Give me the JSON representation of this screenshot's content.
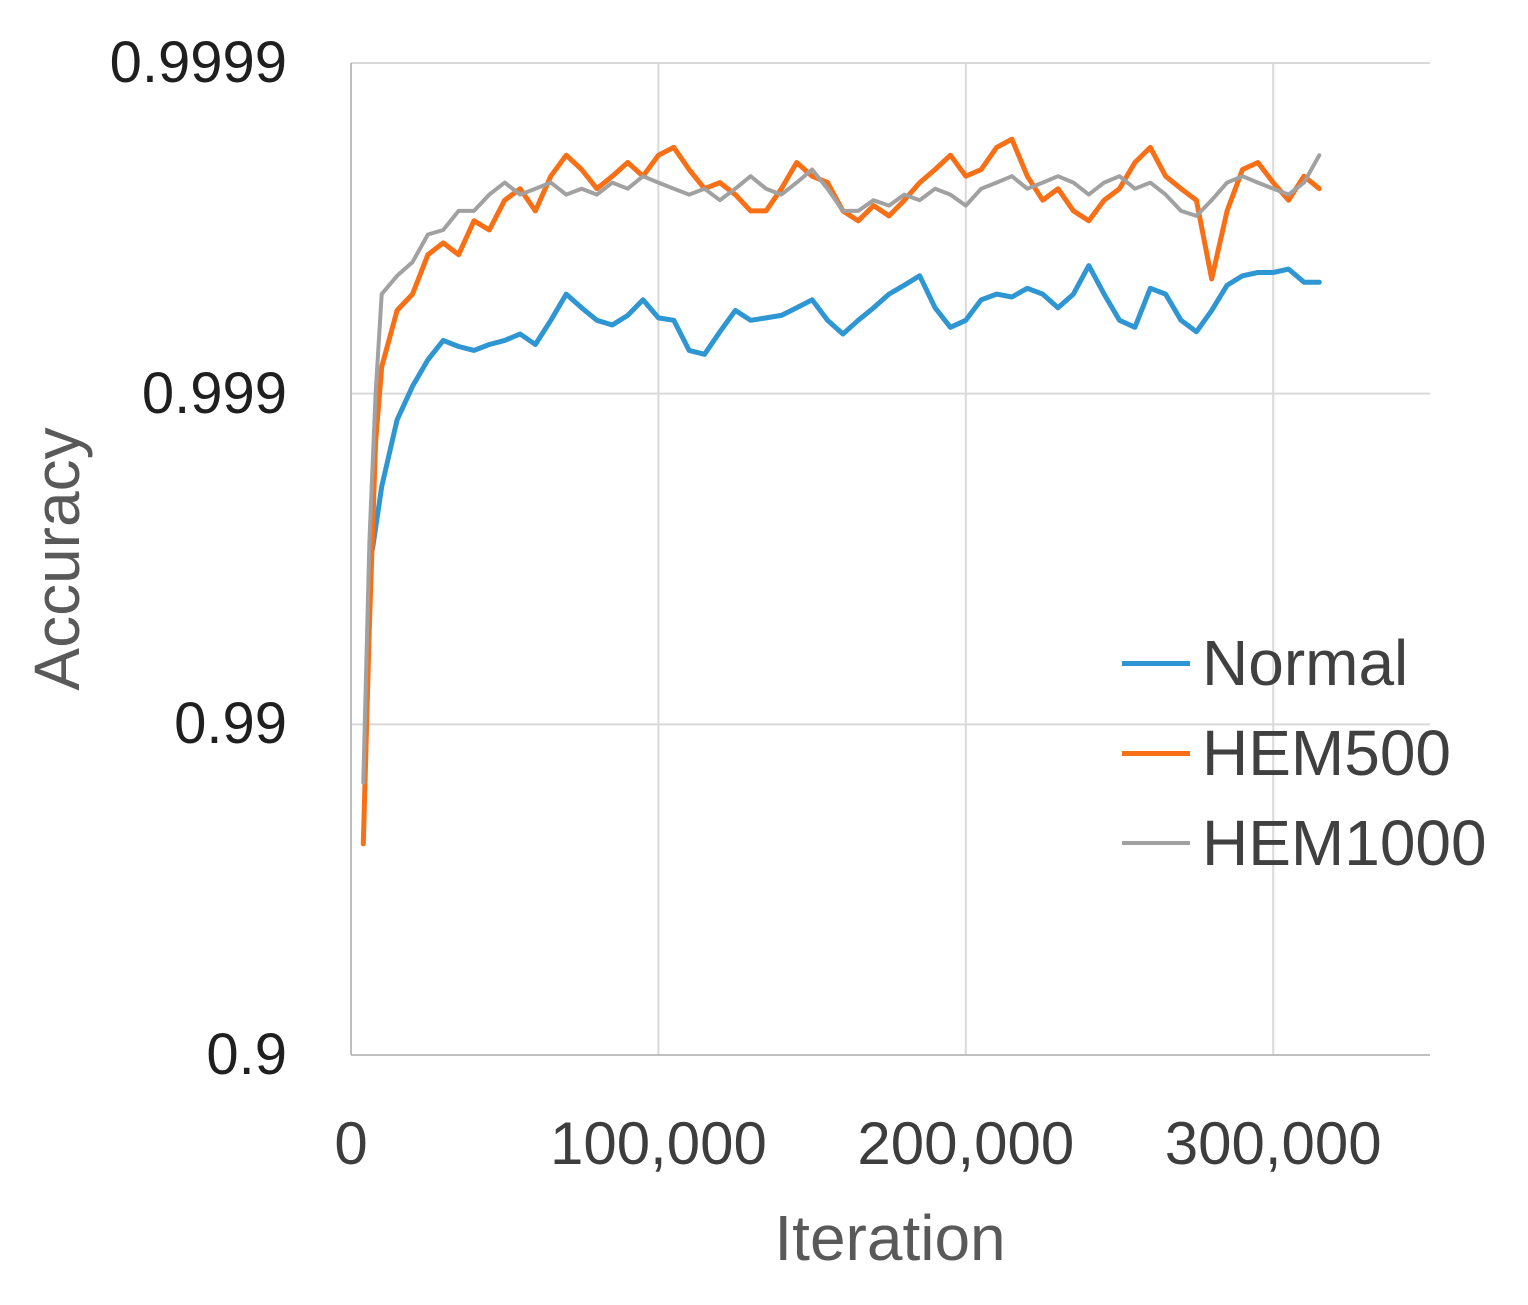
{
  "chart_data": {
    "type": "line",
    "title": "",
    "x_axis": {
      "label": "Iteration",
      "min": 0,
      "max": 351000,
      "ticks": [
        0,
        100000,
        200000,
        300000
      ],
      "tick_labels": [
        "0",
        "100,000",
        "200,000",
        "300,000"
      ]
    },
    "y_axis": {
      "label": "Accuracy",
      "min": 0.9,
      "max": 0.9999,
      "scale": "log10(1-accuracy), one gridline per decade",
      "ticks": [
        0.9,
        0.99,
        0.999,
        0.9999
      ],
      "tick_labels": [
        "0.9",
        "0.99",
        "0.999",
        "0.9999"
      ]
    },
    "grid": true,
    "legend_position": "middle-right-inside",
    "series": [
      {
        "name": "Normal",
        "color": "#2E96D3",
        "stroke_width": 5,
        "x": [
          7000,
          10000,
          15000,
          20000,
          25000,
          30000,
          35000,
          40000,
          45000,
          50000,
          55000,
          60000,
          65000,
          70000,
          75000,
          80000,
          85000,
          90000,
          95000,
          100000,
          105000,
          110000,
          115000,
          120000,
          125000,
          130000,
          135000,
          140000,
          145000,
          150000,
          155000,
          160000,
          165000,
          170000,
          175000,
          180000,
          185000,
          190000,
          195000,
          200000,
          205000,
          210000,
          215000,
          220000,
          225000,
          230000,
          235000,
          240000,
          245000,
          250000,
          255000,
          260000,
          265000,
          270000,
          275000,
          280000,
          285000,
          290000,
          295000,
          300000,
          305000,
          310000,
          315000
        ],
        "y": [
          0.99705,
          0.99809,
          0.9988,
          0.99905,
          0.99921,
          0.99931,
          0.99928,
          0.99926,
          0.99929,
          0.99931,
          0.99934,
          0.99929,
          0.9994,
          0.9995,
          0.99945,
          0.9994,
          0.99938,
          0.99942,
          0.99948,
          0.99941,
          0.9994,
          0.99926,
          0.99924,
          0.99935,
          0.99944,
          0.9994,
          0.99941,
          0.99942,
          0.99945,
          0.99948,
          0.9994,
          0.99934,
          0.9994,
          0.99945,
          0.9995,
          0.99953,
          0.99956,
          0.99945,
          0.99937,
          0.9994,
          0.99948,
          0.9995,
          0.99949,
          0.99952,
          0.9995,
          0.99945,
          0.9995,
          0.99959,
          0.9995,
          0.9994,
          0.99937,
          0.99952,
          0.9995,
          0.9994,
          0.99935,
          0.99944,
          0.99953,
          0.99956,
          0.99957,
          0.99957,
          0.99958,
          0.99954,
          0.99954
        ]
      },
      {
        "name": "HEM500",
        "color": "#F86F15",
        "stroke_width": 5,
        "x": [
          4000,
          6000,
          8000,
          10000,
          15000,
          20000,
          25000,
          30000,
          35000,
          40000,
          45000,
          50000,
          55000,
          60000,
          65000,
          70000,
          75000,
          80000,
          85000,
          90000,
          95000,
          100000,
          105000,
          110000,
          115000,
          120000,
          125000,
          130000,
          135000,
          140000,
          145000,
          150000,
          155000,
          160000,
          165000,
          170000,
          175000,
          180000,
          185000,
          190000,
          195000,
          200000,
          205000,
          210000,
          215000,
          220000,
          225000,
          230000,
          235000,
          240000,
          245000,
          250000,
          255000,
          260000,
          265000,
          270000,
          275000,
          280000,
          285000,
          290000,
          295000,
          300000,
          305000,
          310000,
          315000
        ],
        "y": [
          0.977,
          0.995,
          0.9986,
          0.99917,
          0.99944,
          0.9995,
          0.99962,
          0.99965,
          0.99962,
          0.9997,
          0.99968,
          0.99974,
          0.99976,
          0.99972,
          0.99978,
          0.99981,
          0.99979,
          0.99976,
          0.99978,
          0.9998,
          0.99978,
          0.99981,
          0.99982,
          0.99979,
          0.99976,
          0.99977,
          0.99975,
          0.99972,
          0.99972,
          0.99976,
          0.9998,
          0.99978,
          0.99977,
          0.99972,
          0.9997,
          0.99973,
          0.99971,
          0.99974,
          0.99977,
          0.99979,
          0.99981,
          0.99978,
          0.99979,
          0.99982,
          0.99983,
          0.99978,
          0.99974,
          0.99976,
          0.99972,
          0.9997,
          0.99974,
          0.99976,
          0.9998,
          0.99982,
          0.99978,
          0.99976,
          0.99974,
          0.99955,
          0.99972,
          0.99979,
          0.9998,
          0.99977,
          0.99974,
          0.99978,
          0.99976
        ]
      },
      {
        "name": "HEM1000",
        "color": "#A1A1A1",
        "stroke_width": 4,
        "x": [
          4000,
          6000,
          8000,
          10000,
          15000,
          20000,
          25000,
          30000,
          35000,
          40000,
          45000,
          50000,
          55000,
          60000,
          65000,
          70000,
          75000,
          80000,
          85000,
          90000,
          95000,
          100000,
          105000,
          110000,
          115000,
          120000,
          125000,
          130000,
          135000,
          140000,
          145000,
          150000,
          155000,
          160000,
          165000,
          170000,
          175000,
          180000,
          185000,
          190000,
          195000,
          200000,
          205000,
          210000,
          215000,
          220000,
          225000,
          230000,
          235000,
          240000,
          245000,
          250000,
          255000,
          260000,
          265000,
          270000,
          275000,
          280000,
          285000,
          290000,
          295000,
          300000,
          305000,
          310000,
          315000
        ],
        "y": [
          0.985,
          0.9972,
          0.999,
          0.9995,
          0.99956,
          0.9996,
          0.99967,
          0.99968,
          0.99972,
          0.99972,
          0.99975,
          0.99977,
          0.99975,
          0.99976,
          0.99977,
          0.99975,
          0.99976,
          0.99975,
          0.99977,
          0.99976,
          0.99978,
          0.99977,
          0.99976,
          0.99975,
          0.99976,
          0.99974,
          0.99976,
          0.99978,
          0.99976,
          0.99975,
          0.99977,
          0.99979,
          0.99976,
          0.99972,
          0.99972,
          0.99974,
          0.99973,
          0.99975,
          0.99974,
          0.99976,
          0.99975,
          0.99973,
          0.99976,
          0.99977,
          0.99978,
          0.99976,
          0.99977,
          0.99978,
          0.99977,
          0.99975,
          0.99977,
          0.99978,
          0.99976,
          0.99977,
          0.99975,
          0.99972,
          0.99971,
          0.99974,
          0.99977,
          0.99978,
          0.99977,
          0.99976,
          0.99975,
          0.99977,
          0.99981
        ]
      }
    ]
  },
  "colors": {
    "background": "#FFFFFF",
    "gridline": "#D9D9D9",
    "axis_line": "#BFBFBF",
    "y_tick_text": "#1F1F1F",
    "x_tick_text": "#3D3D3D",
    "axis_title_text": "#595959",
    "legend_text": "#404040"
  }
}
